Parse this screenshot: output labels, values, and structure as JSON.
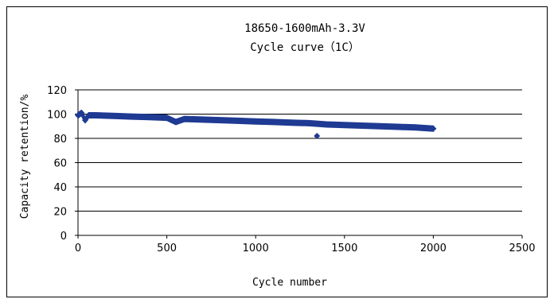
{
  "chart_data": {
    "type": "scatter",
    "title": "18650-1600mAh-3.3V",
    "subtitle": "Cycle curve（1C）",
    "xlabel": "Cycle number",
    "ylabel": "Capacity retention/%",
    "xlim": [
      0,
      2500
    ],
    "ylim": [
      0,
      120
    ],
    "xticks": [
      "0",
      "500",
      "1000",
      "1500",
      "2000",
      "2500"
    ],
    "yticks": [
      "0",
      "20",
      "40",
      "60",
      "80",
      "100",
      "120"
    ],
    "grid": "horizontal",
    "marker_color": "#1f3a93",
    "series": [
      {
        "x": [
          0,
          20,
          40,
          60,
          100,
          200,
          300,
          400,
          500,
          550,
          600,
          700,
          800,
          900,
          1000,
          1100,
          1200,
          1300,
          1345,
          1400,
          1500,
          1600,
          1700,
          1800,
          1900,
          2000
        ],
        "y": [
          99,
          101,
          95,
          99,
          99,
          98.5,
          98,
          97.5,
          97,
          93.5,
          96,
          95.5,
          95,
          94.5,
          94,
          93.5,
          93,
          92.5,
          82,
          91.5,
          91,
          90.5,
          90,
          89.5,
          89,
          88
        ]
      }
    ]
  }
}
